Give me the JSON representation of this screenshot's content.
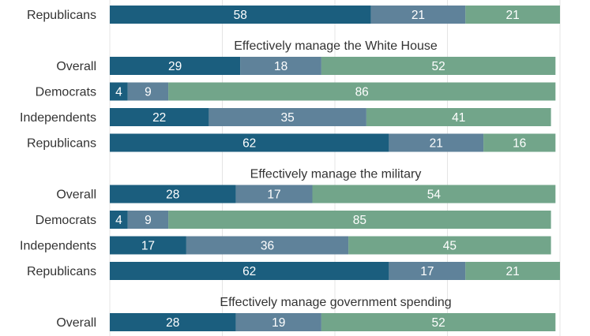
{
  "chart_data": {
    "type": "bar",
    "orientation": "horizontal",
    "stacked": true,
    "xlim": [
      0,
      100
    ],
    "grid": true,
    "colors": [
      "#1b5e7e",
      "#5f829a",
      "#72a58a"
    ],
    "label_color": "#ffffff",
    "text_color": "#333333",
    "groups": [
      {
        "title": "",
        "rows": [
          {
            "label": "Republicans",
            "values": [
              58,
              21,
              21
            ]
          }
        ]
      },
      {
        "title": "Effectively manage the White House",
        "rows": [
          {
            "label": "Overall",
            "values": [
              29,
              18,
              52
            ]
          },
          {
            "label": "Democrats",
            "values": [
              4,
              9,
              86
            ]
          },
          {
            "label": "Independents",
            "values": [
              22,
              35,
              41
            ]
          },
          {
            "label": "Republicans",
            "values": [
              62,
              21,
              16
            ]
          }
        ]
      },
      {
        "title": "Effectively manage the military",
        "rows": [
          {
            "label": "Overall",
            "values": [
              28,
              17,
              54
            ]
          },
          {
            "label": "Democrats",
            "values": [
              4,
              9,
              85
            ]
          },
          {
            "label": "Independents",
            "values": [
              17,
              36,
              45
            ]
          },
          {
            "label": "Republicans",
            "values": [
              62,
              17,
              21
            ]
          }
        ]
      },
      {
        "title": "Effectively manage government spending",
        "rows": [
          {
            "label": "Overall",
            "values": [
              28,
              19,
              52
            ]
          }
        ]
      }
    ]
  }
}
